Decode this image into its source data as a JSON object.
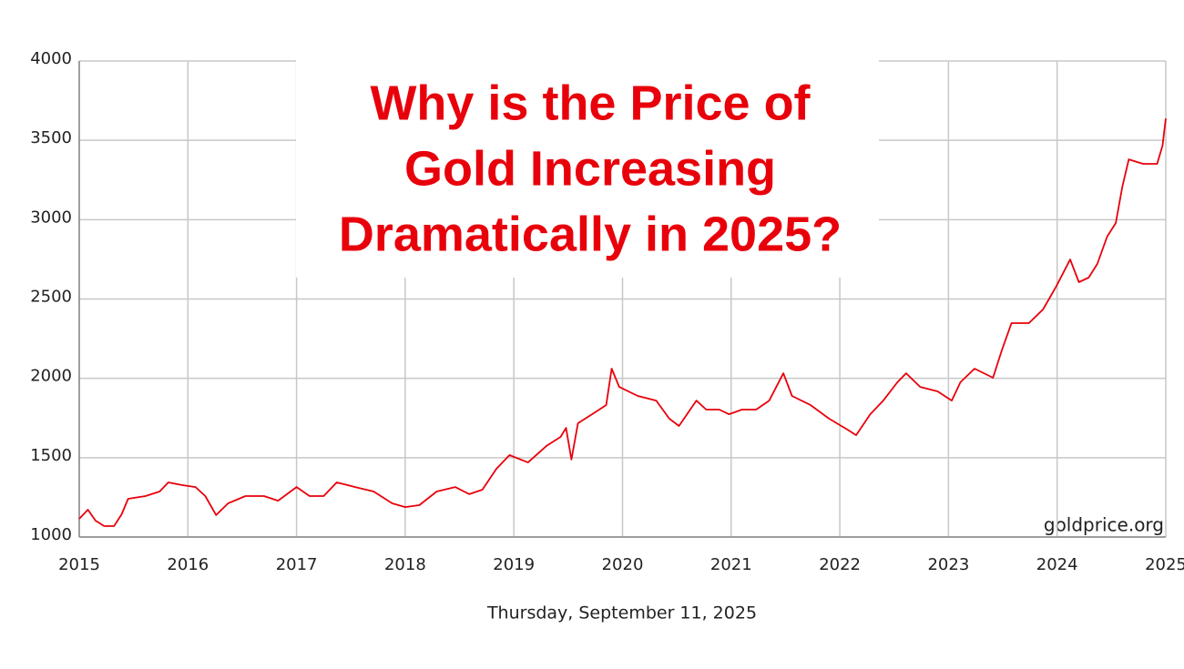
{
  "chart_data": {
    "type": "line",
    "title": [
      "Why is the Price of",
      "Gold Increasing",
      "Dramatically in 2025?"
    ],
    "subtitle": "Thursday, September 11, 2025",
    "annotation": "goldprice.org",
    "color": "#e8000b",
    "grid": true,
    "xlim": [
      2015,
      2025
    ],
    "xticks": [
      2015,
      2016,
      2017,
      2018,
      2019,
      2020,
      2021,
      2022,
      2023,
      2024,
      2025
    ],
    "ylim": [
      1000,
      4000
    ],
    "yticks": [
      1000,
      1500,
      2000,
      2500,
      3000,
      3500,
      4000
    ],
    "x": [
      2015.0,
      2015.08,
      2015.15,
      2015.23,
      2015.32,
      2015.39,
      2015.45,
      2015.61,
      2015.74,
      2015.82,
      2015.95,
      2016.07,
      2016.16,
      2016.26,
      2016.37,
      2016.53,
      2016.7,
      2016.83,
      2017.0,
      2017.12,
      2017.25,
      2017.37,
      2017.54,
      2017.71,
      2017.88,
      2018.0,
      2018.13,
      2018.29,
      2018.46,
      2018.59,
      2018.71,
      2018.84,
      2018.96,
      2019.13,
      2019.3,
      2019.43,
      2019.48,
      2019.53,
      2019.59,
      2019.72,
      2019.85,
      2019.9,
      2019.97,
      2020.14,
      2020.31,
      2020.43,
      2020.52,
      2020.68,
      2020.77,
      2020.89,
      2020.98,
      2021.1,
      2021.23,
      2021.35,
      2021.48,
      2021.56,
      2021.73,
      2021.9,
      2022.07,
      2022.15,
      2022.28,
      2022.4,
      2022.53,
      2022.61,
      2022.74,
      2022.9,
      2023.03,
      2023.11,
      2023.24,
      2023.41,
      2023.49,
      2023.58,
      2023.74,
      2023.87,
      2023.99,
      2024.12,
      2024.2,
      2024.29,
      2024.37,
      2024.46,
      2024.54,
      2024.6,
      2024.66,
      2024.79,
      2024.92,
      2024.97,
      2025.0
    ],
    "values": [
      1115,
      1172,
      1103,
      1069,
      1069,
      1143,
      1241,
      1258,
      1287,
      1344,
      1327,
      1315,
      1258,
      1138,
      1212,
      1258,
      1258,
      1229,
      1315,
      1258,
      1258,
      1344,
      1315,
      1287,
      1212,
      1189,
      1201,
      1287,
      1315,
      1270,
      1298,
      1430,
      1516,
      1470,
      1574,
      1631,
      1688,
      1488,
      1717,
      1774,
      1832,
      2061,
      1946,
      1889,
      1860,
      1746,
      1700,
      1860,
      1803,
      1803,
      1774,
      1803,
      1803,
      1860,
      2032,
      1889,
      1832,
      1746,
      1677,
      1642,
      1774,
      1860,
      1975,
      2032,
      1946,
      1918,
      1860,
      1975,
      2061,
      2004,
      2176,
      2348,
      2348,
      2434,
      2577,
      2749,
      2606,
      2635,
      2721,
      2893,
      2979,
      3208,
      3380,
      3352,
      3352,
      3466,
      3638
    ]
  }
}
